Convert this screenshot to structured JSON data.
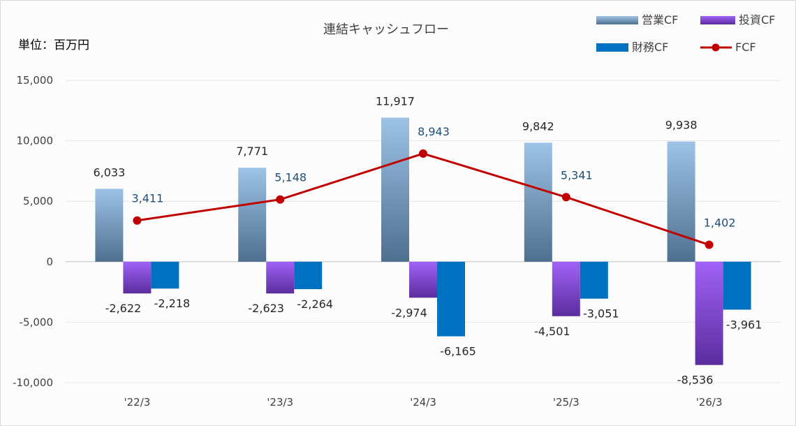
{
  "chart_data": {
    "type": "bar",
    "title": "連結キャッシュフロー",
    "unit_label": "単位：百万円",
    "categories": [
      "'22/3",
      "'23/3",
      "'24/3",
      "'25/3",
      "'26/3"
    ],
    "series": [
      {
        "name": "営業CF",
        "type": "bar",
        "values": [
          6033,
          7771,
          11917,
          9842,
          9938
        ],
        "labels": [
          "6,033",
          "7,771",
          "11,917",
          "9,842",
          "9,938"
        ],
        "color": "#9dc3e6",
        "color_dark": "#4f6f8f"
      },
      {
        "name": "投資CF",
        "type": "bar",
        "values": [
          -2622,
          -2623,
          -2974,
          -4501,
          -8536
        ],
        "labels": [
          "-2,622",
          "-2,623",
          "-2,974",
          "-4,501",
          "-8,536"
        ],
        "color": "#a162f7",
        "color_dark": "#5b2d9e"
      },
      {
        "name": "財務CF",
        "type": "bar",
        "values": [
          -2218,
          -2264,
          -6165,
          -3051,
          -3961
        ],
        "labels": [
          "-2,218",
          "-2,264",
          "-6,165",
          "-3,051",
          "-3,961"
        ],
        "color": "#0070c0"
      },
      {
        "name": "FCF",
        "type": "line",
        "values": [
          3411,
          5148,
          8943,
          5341,
          1402
        ],
        "labels": [
          "3,411",
          "5,148",
          "8,943",
          "5,341",
          "1,402"
        ],
        "color": "#c00000"
      }
    ],
    "yaxis": {
      "ylim": [
        -10000,
        15000
      ],
      "ticks": [
        15000,
        10000,
        5000,
        0,
        -5000,
        -10000
      ],
      "tick_labels": [
        "15,000",
        "10,000",
        "5,000",
        "0",
        "-5,000",
        "-10,000"
      ]
    },
    "grid": true,
    "legend_position": "top-right"
  }
}
